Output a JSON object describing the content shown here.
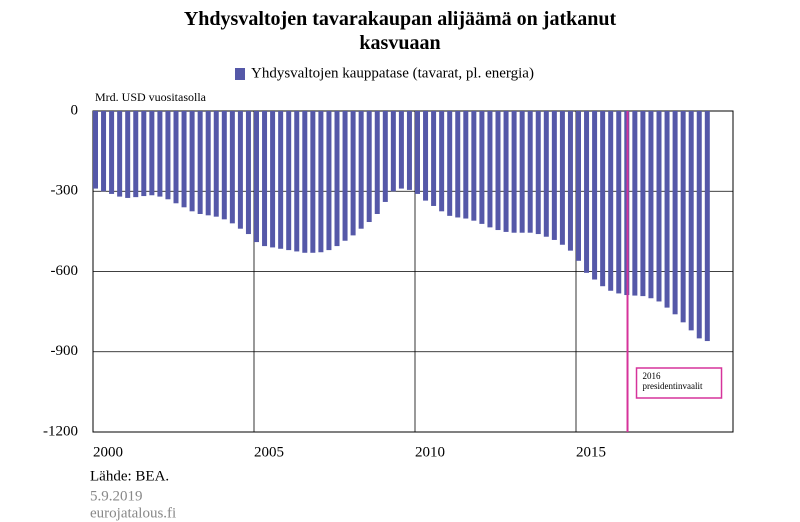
{
  "chart_data": {
    "type": "bar",
    "title": "Yhdysvaltojen tavarakaupan alijäämä on jatkanut kasvuaan",
    "y_label": "Mrd. USD vuositasolla",
    "x": [
      2000,
      2000.25,
      2000.5,
      2000.75,
      2001,
      2001.25,
      2001.5,
      2001.75,
      2002,
      2002.25,
      2002.5,
      2002.75,
      2003,
      2003.25,
      2003.5,
      2003.75,
      2004,
      2004.25,
      2004.5,
      2004.75,
      2005,
      2005.25,
      2005.5,
      2005.75,
      2006,
      2006.25,
      2006.5,
      2006.75,
      2007,
      2007.25,
      2007.5,
      2007.75,
      2008,
      2008.25,
      2008.5,
      2008.75,
      2009,
      2009.25,
      2009.5,
      2009.75,
      2010,
      2010.25,
      2010.5,
      2010.75,
      2011,
      2011.25,
      2011.5,
      2011.75,
      2012,
      2012.25,
      2012.5,
      2012.75,
      2013,
      2013.25,
      2013.5,
      2013.75,
      2014,
      2014.25,
      2014.5,
      2014.75,
      2015,
      2015.25,
      2015.5,
      2015.75,
      2016,
      2016.25,
      2016.5,
      2016.75,
      2017,
      2017.25,
      2017.5,
      2017.75,
      2018,
      2018.25,
      2018.5,
      2018.75,
      2019
    ],
    "series": [
      {
        "name": "Yhdysvaltojen kauppatase (tavarat, pl. energia)",
        "color": "#5558a8",
        "values": [
          -290,
          -300,
          -310,
          -320,
          -325,
          -322,
          -318,
          -315,
          -320,
          -330,
          -345,
          -360,
          -375,
          -385,
          -390,
          -395,
          -405,
          -420,
          -440,
          -460,
          -490,
          -505,
          -510,
          -515,
          -520,
          -525,
          -530,
          -530,
          -528,
          -520,
          -505,
          -485,
          -465,
          -440,
          -415,
          -385,
          -340,
          -300,
          -290,
          -295,
          -310,
          -335,
          -355,
          -375,
          -392,
          -398,
          -402,
          -410,
          -422,
          -435,
          -445,
          -452,
          -455,
          -455,
          -455,
          -460,
          -470,
          -482,
          -500,
          -522,
          -560,
          -605,
          -630,
          -655,
          -672,
          -682,
          -688,
          -690,
          -692,
          -700,
          -712,
          -735,
          -760,
          -790,
          -820,
          -850,
          -860
        ]
      }
    ],
    "xlim": [
      2000,
      2020
    ],
    "xticks": [
      2000,
      2005,
      2010,
      2015
    ],
    "ylim": [
      -1200,
      0
    ],
    "yticks": [
      0,
      -300,
      -600,
      -900,
      -1200
    ],
    "grid": true,
    "annotation": {
      "x": 2016.6,
      "color": "#d6339b",
      "lines": [
        "2016",
        "presidentinvaalit"
      ]
    },
    "source": "Lähde: BEA.",
    "date": "5.9.2019",
    "site": "eurojatalous.fi"
  }
}
